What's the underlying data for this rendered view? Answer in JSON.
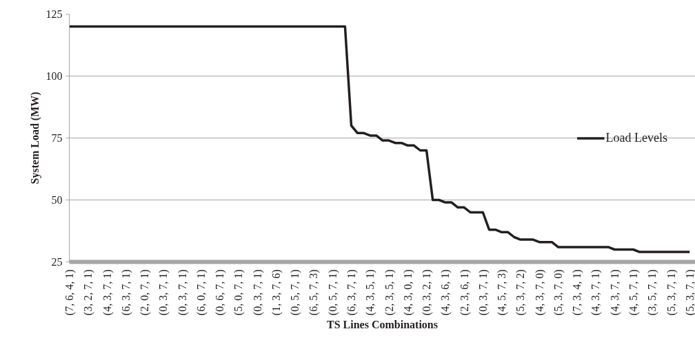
{
  "chart_data": {
    "type": "line",
    "xlabel": "TS Lines Combinations",
    "ylabel": "System Load (MW)",
    "categories": [
      "(7, 6, 4, 1)",
      null,
      null,
      "(3, 2, 7, 1)",
      null,
      null,
      "(4, 3, 7, 1)",
      null,
      null,
      "(6, 3, 7, 1)",
      null,
      null,
      "(2, 0, 7, 1)",
      null,
      null,
      "(0, 3, 7, 1)",
      null,
      null,
      "(0, 3, 7, 1)",
      null,
      null,
      "(6, 0, 7, 1)",
      null,
      null,
      "(0, 6, 7, 1)",
      null,
      null,
      "(5, 0, 7, 1)",
      null,
      null,
      "(0, 3, 7, 1)",
      null,
      null,
      "(1, 3, 7, 6)",
      null,
      null,
      "(0, 5, 7, 1)",
      null,
      null,
      "(6, 5, 7, 3)",
      null,
      null,
      "(0, 5, 7, 1)",
      null,
      null,
      "(6, 3, 7, 1)",
      null,
      null,
      "(4, 3, 5, 1)",
      null,
      null,
      "(2, 3, 5, 1)",
      null,
      null,
      "(4, 3, 0, 1)",
      null,
      null,
      "(0, 3, 2, 1)",
      null,
      null,
      "(4, 3, 6, 1)",
      null,
      null,
      "(2, 3, 6, 1)",
      null,
      null,
      "(0, 3, 7, 1)",
      null,
      null,
      "(4, 5, 7, 3)",
      null,
      null,
      "(5, 3, 7, 2)",
      null,
      null,
      "(4, 3, 7, 0)",
      null,
      null,
      "(5, 3, 7, 0)",
      null,
      null,
      "(7, 3, 4, 1)",
      null,
      null,
      "(4, 3, 7, 1)",
      null,
      null,
      "(4, 3, 7, 1)",
      null,
      null,
      "(4, 5, 7, 1)",
      null,
      null,
      "(3, 5, 7, 1)",
      null,
      null,
      "(5, 3, 7, 1)",
      null,
      null,
      "(5, 3, 7, 1)"
    ],
    "series": [
      {
        "name": "Load Levels",
        "color": "#231f20",
        "values": [
          120,
          120,
          120,
          120,
          120,
          120,
          120,
          120,
          120,
          120,
          120,
          120,
          120,
          120,
          120,
          120,
          120,
          120,
          120,
          120,
          120,
          120,
          120,
          120,
          120,
          120,
          120,
          120,
          120,
          120,
          120,
          120,
          120,
          120,
          120,
          120,
          120,
          120,
          120,
          120,
          120,
          120,
          120,
          120,
          120,
          80,
          77,
          77,
          76,
          76,
          74,
          74,
          73,
          73,
          72,
          72,
          70,
          70,
          50,
          50,
          49,
          49,
          47,
          47,
          45,
          45,
          45,
          38,
          38,
          37,
          37,
          35,
          34,
          34,
          34,
          33,
          33,
          33,
          31,
          31,
          31,
          31,
          31,
          31,
          31,
          31,
          31,
          30,
          30,
          30,
          30,
          29,
          29,
          29,
          29,
          29,
          29,
          29,
          29,
          29
        ]
      }
    ],
    "ylim": [
      25,
      125
    ],
    "yticks": [
      25,
      50,
      75,
      100,
      125
    ],
    "grid": "y",
    "legend": "right",
    "marker": "none",
    "line_style": "solid"
  }
}
